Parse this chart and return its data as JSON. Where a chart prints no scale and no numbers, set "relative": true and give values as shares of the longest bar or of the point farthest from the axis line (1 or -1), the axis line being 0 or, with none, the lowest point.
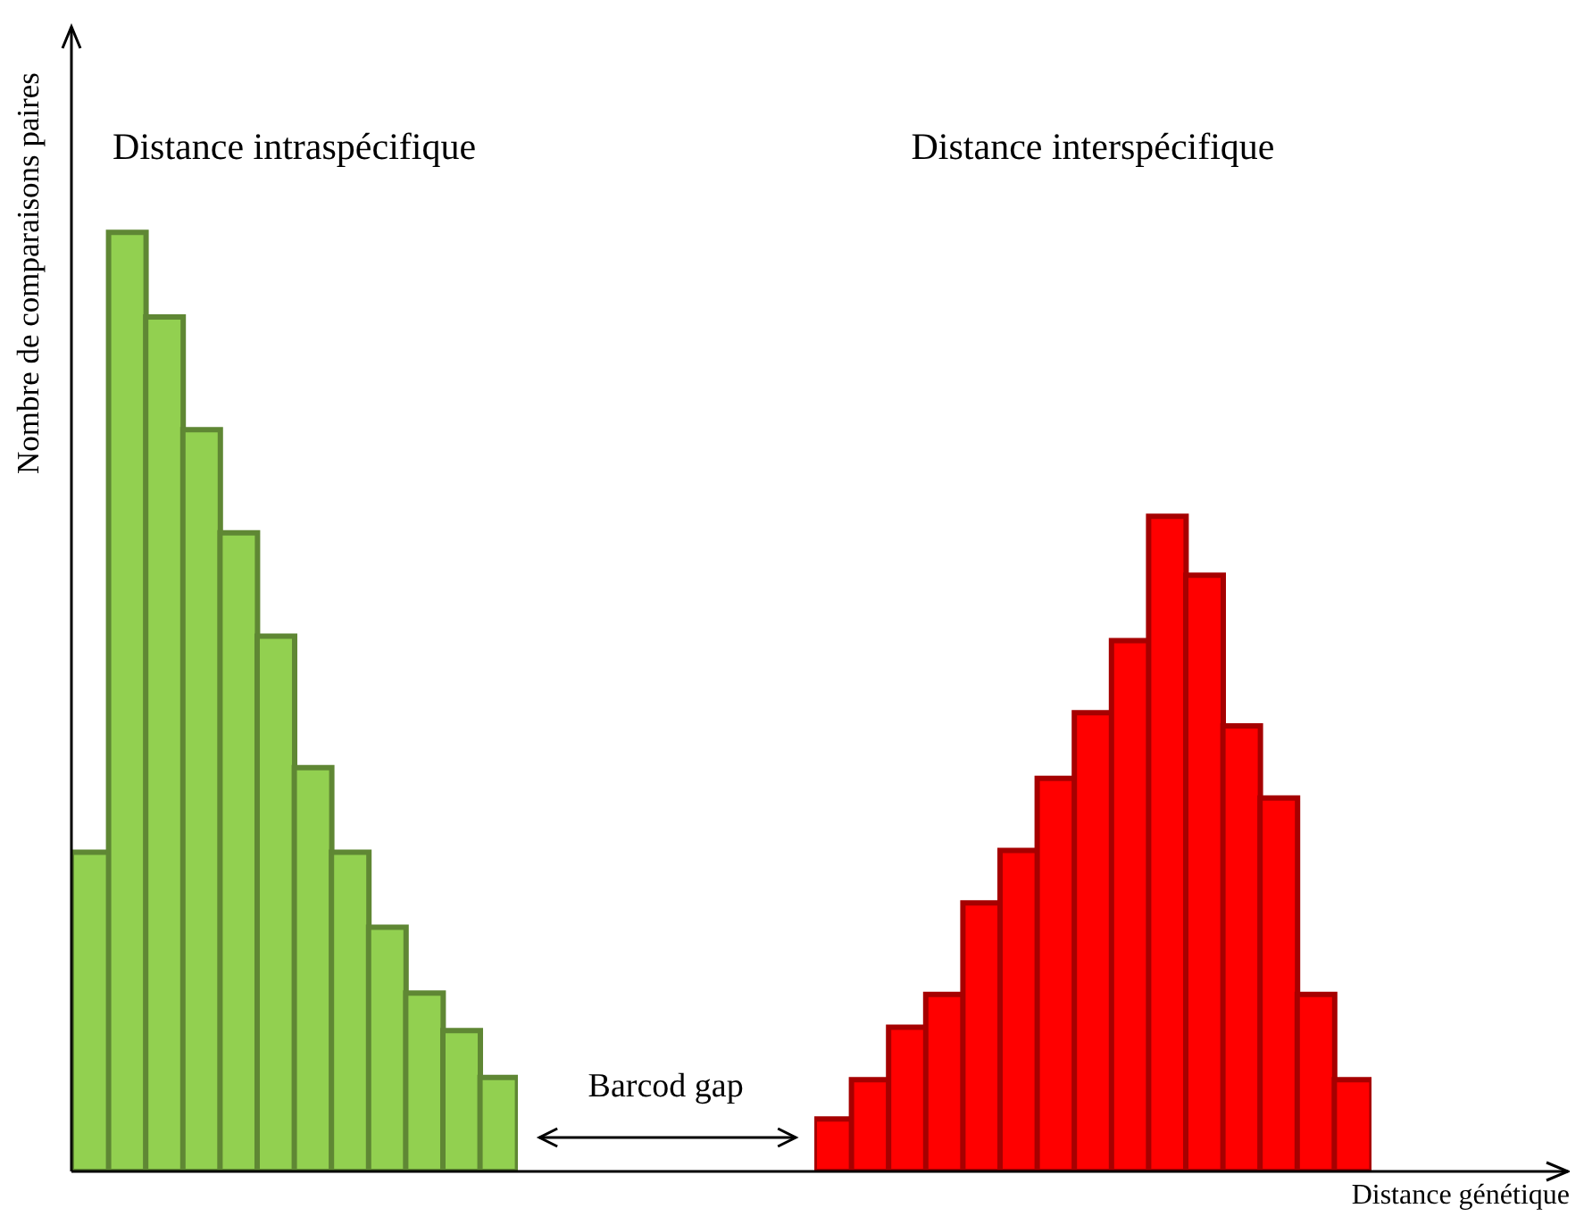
{
  "chart_data": [
    {
      "type": "bar",
      "relative": true,
      "ylabel": "Nombre de comparaisons paires",
      "annotations": [
        "Distance intraspécifique",
        "Barcod gap"
      ],
      "categories": [
        null,
        null,
        null,
        null,
        null,
        null,
        null,
        null,
        null,
        null,
        null,
        null
      ],
      "values": [
        0.34,
        1,
        0.91,
        0.79,
        0.68,
        0.57,
        0.43,
        0.34,
        0.26,
        0.19,
        0.15,
        0.1
      ],
      "color": "#92d050"
    },
    {
      "type": "bar",
      "relative": true,
      "xlabel": "Distance génétique",
      "annotations": [
        "Distance interspécifique"
      ],
      "categories": [
        null,
        null,
        null,
        null,
        null,
        null,
        null,
        null,
        null,
        null,
        null,
        null,
        null,
        null,
        null
      ],
      "values": [
        0.08,
        0.14,
        0.22,
        0.27,
        0.41,
        0.49,
        0.6,
        0.7,
        0.81,
        1,
        0.91,
        0.68,
        0.57,
        0.27,
        0.14
      ],
      "color": "#ff0000"
    }
  ]
}
